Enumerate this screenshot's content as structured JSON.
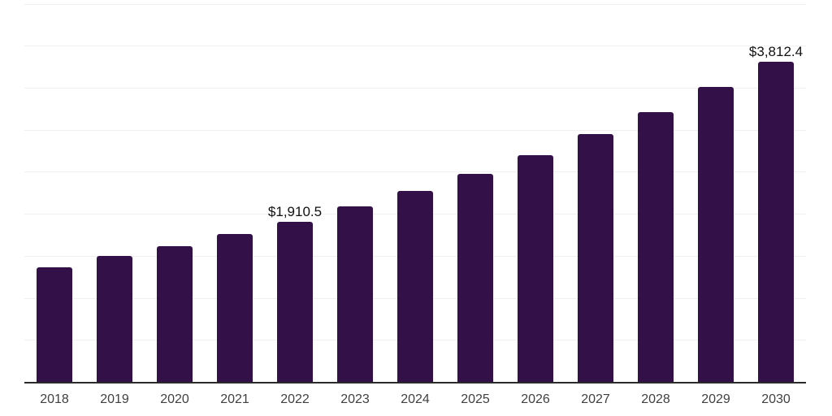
{
  "chart_data": {
    "type": "bar",
    "title": "",
    "xlabel": "",
    "ylabel": "",
    "categories": [
      "2018",
      "2019",
      "2020",
      "2021",
      "2022",
      "2023",
      "2024",
      "2025",
      "2026",
      "2027",
      "2028",
      "2029",
      "2030"
    ],
    "values": [
      1365,
      1503,
      1622,
      1766,
      1910.5,
      2094,
      2281,
      2483,
      2698,
      2949,
      3212,
      3517,
      3812.4
    ],
    "data_labels": [
      {
        "category": "2022",
        "text": "$1,910.5"
      },
      {
        "category": "2030",
        "text": "$3,812.4"
      }
    ],
    "ylim": [
      0,
      4500
    ],
    "gridline_step": 500,
    "grid": "horizontal",
    "legend": "none",
    "y_axis_labels_visible": false
  },
  "colors": {
    "background": "#ffffff",
    "bar": "#331047",
    "gridline": "#f0f0f0",
    "axis_line": "#2b2b2b",
    "tick_label": "#404040",
    "data_label": "#111111"
  }
}
